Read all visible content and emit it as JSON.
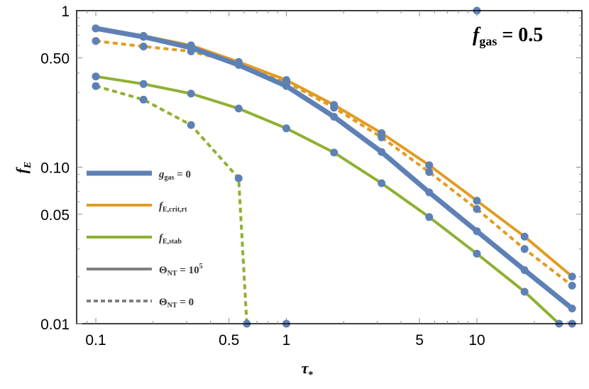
{
  "chart_data": {
    "type": "line",
    "title": "",
    "annotation": {
      "text_main": "f",
      "text_sub": "gas",
      "text_rest": " = 0.5"
    },
    "xlabel": "τ*",
    "ylabel": "fE",
    "xscale": "log",
    "yscale": "log",
    "xlim": [
      0.085,
      36
    ],
    "ylim": [
      0.01,
      1
    ],
    "grid": false,
    "legend_position": "lower-left (inside)",
    "x_ticks": [
      {
        "value": 0.1,
        "label": "0.1"
      },
      {
        "value": 0.5,
        "label": "0.5"
      },
      {
        "value": 1,
        "label": "1"
      },
      {
        "value": 5,
        "label": "5"
      },
      {
        "value": 10,
        "label": "10"
      }
    ],
    "y_ticks": [
      {
        "value": 0.01,
        "label": "0.01"
      },
      {
        "value": 0.05,
        "label": "0.05"
      },
      {
        "value": 0.1,
        "label": "0.10"
      },
      {
        "value": 0.5,
        "label": "0.50"
      },
      {
        "value": 1,
        "label": "1"
      }
    ],
    "x": [
      0.1,
      0.178,
      0.316,
      0.562,
      1.0,
      1.78,
      3.16,
      5.62,
      10.0,
      17.8,
      31.6
    ],
    "series": [
      {
        "name": "f_E,crit,rt (Θ_NT = 10^5)",
        "color": "#E19C24",
        "dash": false,
        "width": 4,
        "x": [
          0.1,
          0.178,
          0.316,
          0.562,
          1.0,
          1.78,
          3.16,
          5.62,
          10.0,
          17.8,
          31.6
        ],
        "values": [
          0.77,
          0.69,
          0.6,
          0.47,
          0.36,
          0.25,
          0.165,
          0.103,
          0.061,
          0.036,
          0.02
        ]
      },
      {
        "name": "f_E,crit,rt (Θ_NT = 0)",
        "color": "#E19C24",
        "dash": true,
        "width": 4,
        "x": [
          0.1,
          0.178,
          0.316,
          0.562,
          1.0,
          1.78,
          3.16,
          5.62,
          10.0,
          17.8,
          31.6
        ],
        "values": [
          0.64,
          0.59,
          0.55,
          0.46,
          0.35,
          0.24,
          0.155,
          0.093,
          0.054,
          0.03,
          0.0175
        ]
      },
      {
        "name": "g_gas = 0 (Θ_NT = 10^5)",
        "color": "#5E81B5",
        "dash": false,
        "width": 7,
        "x": [
          0.1,
          0.178,
          0.316,
          0.562,
          1.0,
          1.78,
          3.16,
          5.62,
          10.0,
          17.8,
          31.6
        ],
        "values": [
          0.77,
          0.68,
          0.58,
          0.45,
          0.33,
          0.21,
          0.125,
          0.069,
          0.039,
          0.022,
          0.0125
        ]
      },
      {
        "name": "f_E,stab (Θ_NT = 10^5)",
        "color": "#8FB032",
        "dash": false,
        "width": 4,
        "x": [
          0.1,
          0.178,
          0.316,
          0.562,
          1.0,
          1.78,
          3.16,
          5.62,
          10.0,
          17.8,
          27.0
        ],
        "values": [
          0.38,
          0.34,
          0.295,
          0.237,
          0.177,
          0.124,
          0.079,
          0.048,
          0.028,
          0.016,
          0.01
        ]
      },
      {
        "name": "f_E,stab (Θ_NT = 0)",
        "color": "#8FB032",
        "dash": true,
        "width": 4,
        "x": [
          0.1,
          0.178,
          0.316,
          0.562,
          0.62
        ],
        "values": [
          0.33,
          0.27,
          0.186,
          0.085,
          0.01
        ]
      }
    ],
    "marker_color": "#5E81B5",
    "extra_points": [
      {
        "x": 1.0,
        "y": 0.01
      },
      {
        "x": 10.0,
        "y": 1.0
      },
      {
        "x": 31.6,
        "y": 0.01
      }
    ],
    "legend": [
      {
        "label_main": "g",
        "label_sub": "gas",
        "label_rest": " = 0",
        "color": "#5E81B5",
        "dash": false,
        "width": 7
      },
      {
        "label_main": "f",
        "label_sub": "E,crit,rt",
        "label_rest": "",
        "color": "#E19C24",
        "dash": false,
        "width": 4
      },
      {
        "label_main": "f",
        "label_sub": "E,stab",
        "label_rest": "",
        "color": "#8FB032",
        "dash": false,
        "width": 4
      },
      {
        "label_main": "Θ",
        "label_sub": "NT",
        "label_rest": " = 10",
        "label_sup": "5",
        "color": "#808080",
        "dash": false,
        "width": 4
      },
      {
        "label_main": "Θ",
        "label_sub": "NT",
        "label_rest": " = 0",
        "color": "#808080",
        "dash": true,
        "width": 4
      }
    ]
  }
}
